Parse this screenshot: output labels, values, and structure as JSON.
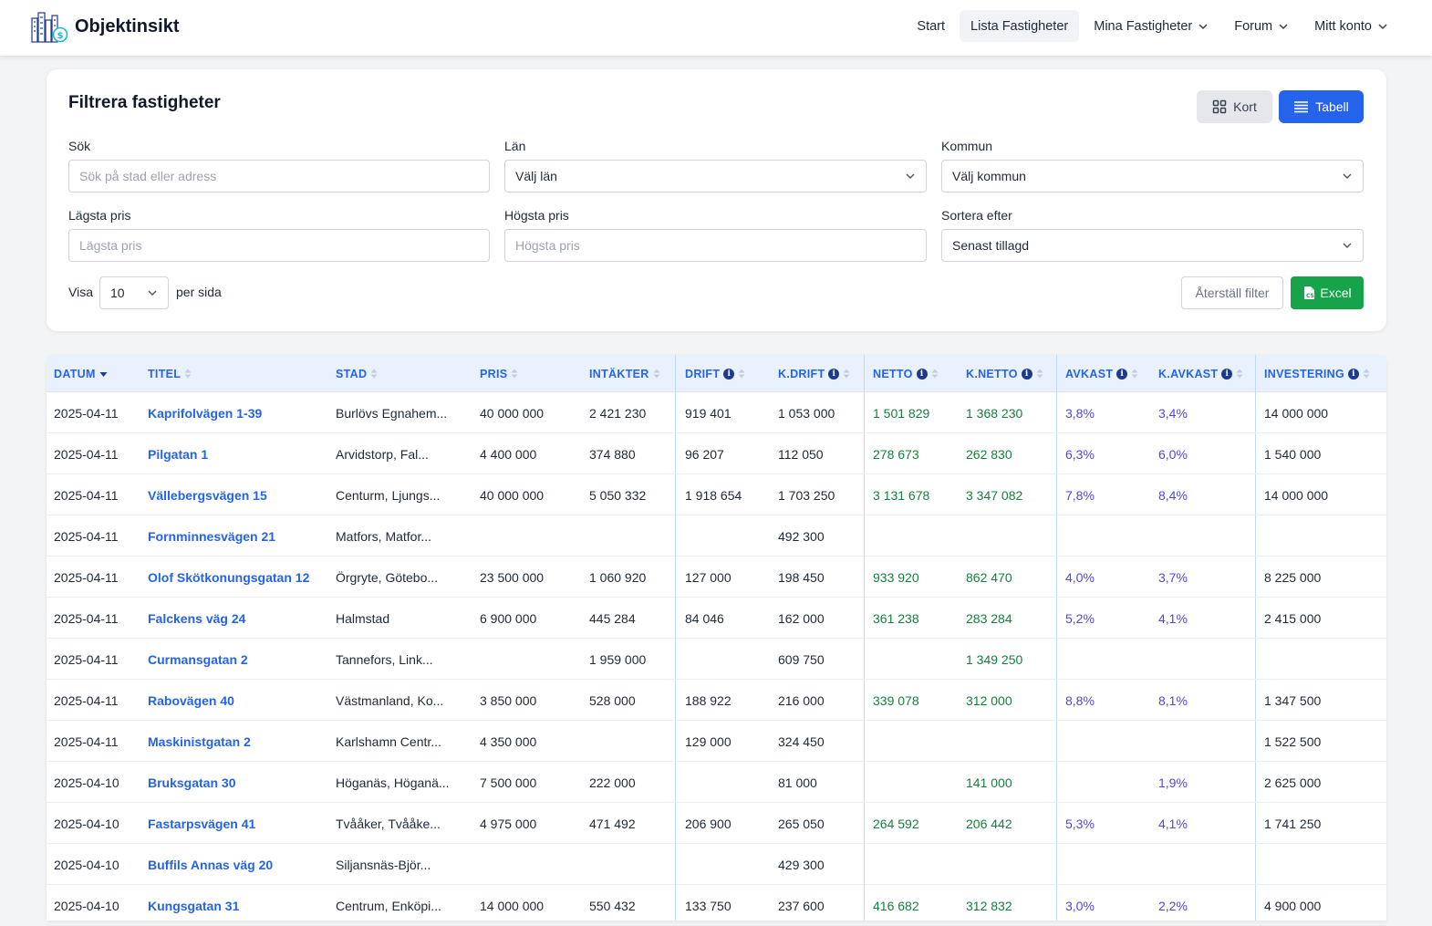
{
  "brand": {
    "name": "Objektinsikt"
  },
  "nav": {
    "start": "Start",
    "lista": "Lista Fastigheter",
    "mina": "Mina Fastigheter",
    "forum": "Forum",
    "konto": "Mitt konto"
  },
  "filter": {
    "title": "Filtrera fastigheter",
    "view_kort": "Kort",
    "view_tabell": "Tabell",
    "search_label": "Sök",
    "search_placeholder": "Sök på stad eller adress",
    "lan_label": "Län",
    "lan_value": "Välj län",
    "kommun_label": "Kommun",
    "kommun_value": "Välj kommun",
    "min_label": "Lägsta pris",
    "min_placeholder": "Lägsta pris",
    "max_label": "Högsta pris",
    "max_placeholder": "Högsta pris",
    "sort_label": "Sortera efter",
    "sort_value": "Senast tillagd",
    "visa_label": "Visa",
    "per_page_value": "10",
    "per_sida_label": "per sida",
    "reset_label": "Återställ filter",
    "excel_label": "Excel"
  },
  "table": {
    "headers": {
      "datum": "DATUM",
      "titel": "TITEL",
      "stad": "STAD",
      "pris": "PRIS",
      "intakter": "INTÄKTER",
      "drift": "DRIFT",
      "kdrift": "K.DRIFT",
      "netto": "NETTO",
      "knetto": "K.NETTO",
      "avkast": "AVKAST",
      "kavkast": "K.AVKAST",
      "investering": "INVESTERING"
    },
    "rows": [
      {
        "datum": "2025-04-11",
        "titel": "Kaprifolvägen 1-39",
        "stad": "Burlövs Egnahem...",
        "pris": "40 000 000",
        "intakter": "2 421 230",
        "drift": "919 401",
        "kdrift": "1 053 000",
        "netto": "1 501 829",
        "knetto": "1 368 230",
        "avkast": "3,8%",
        "kavkast": "3,4%",
        "investering": "14 000 000"
      },
      {
        "datum": "2025-04-11",
        "titel": "Pilgatan 1",
        "stad": "Arvidstorp, Fal...",
        "pris": "4 400 000",
        "intakter": "374 880",
        "drift": "96 207",
        "kdrift": "112 050",
        "netto": "278 673",
        "knetto": "262 830",
        "avkast": "6,3%",
        "kavkast": "6,0%",
        "investering": "1 540 000"
      },
      {
        "datum": "2025-04-11",
        "titel": "Vällebergsvägen 15",
        "stad": "Centurm, Ljungs...",
        "pris": "40 000 000",
        "intakter": "5 050 332",
        "drift": "1 918 654",
        "kdrift": "1 703 250",
        "netto": "3 131 678",
        "knetto": "3 347 082",
        "avkast": "7,8%",
        "kavkast": "8,4%",
        "investering": "14 000 000"
      },
      {
        "datum": "2025-04-11",
        "titel": "Fornminnesvägen 21",
        "stad": "Matfors, Matfor...",
        "pris": "",
        "intakter": "",
        "drift": "",
        "kdrift": "492 300",
        "netto": "",
        "knetto": "",
        "avkast": "",
        "kavkast": "",
        "investering": ""
      },
      {
        "datum": "2025-04-11",
        "titel": "Olof Skötkonungsgatan 12",
        "stad": "Örgryte, Götebo...",
        "pris": "23 500 000",
        "intakter": "1 060 920",
        "drift": "127 000",
        "kdrift": "198 450",
        "netto": "933 920",
        "knetto": "862 470",
        "avkast": "4,0%",
        "kavkast": "3,7%",
        "investering": "8 225 000"
      },
      {
        "datum": "2025-04-11",
        "titel": "Falckens väg 24",
        "stad": "Halmstad",
        "pris": "6 900 000",
        "intakter": "445 284",
        "drift": "84 046",
        "kdrift": "162 000",
        "netto": "361 238",
        "knetto": "283 284",
        "avkast": "5,2%",
        "kavkast": "4,1%",
        "investering": "2 415 000"
      },
      {
        "datum": "2025-04-11",
        "titel": "Curmansgatan 2",
        "stad": "Tannefors, Link...",
        "pris": "",
        "intakter": "1 959 000",
        "drift": "",
        "kdrift": "609 750",
        "netto": "",
        "knetto": "1 349 250",
        "avkast": "",
        "kavkast": "",
        "investering": ""
      },
      {
        "datum": "2025-04-11",
        "titel": "Rabovägen 40",
        "stad": "Västmanland, Ko...",
        "pris": "3 850 000",
        "intakter": "528 000",
        "drift": "188 922",
        "kdrift": "216 000",
        "netto": "339 078",
        "knetto": "312 000",
        "avkast": "8,8%",
        "kavkast": "8,1%",
        "investering": "1 347 500"
      },
      {
        "datum": "2025-04-11",
        "titel": "Maskinistgatan 2",
        "stad": "Karlshamn Centr...",
        "pris": "4 350 000",
        "intakter": "",
        "drift": "129 000",
        "kdrift": "324 450",
        "netto": "",
        "knetto": "",
        "avkast": "",
        "kavkast": "",
        "investering": "1 522 500"
      },
      {
        "datum": "2025-04-10",
        "titel": "Bruksgatan 30",
        "stad": "Höganäs, Höganä...",
        "pris": "7 500 000",
        "intakter": "222 000",
        "drift": "",
        "kdrift": "81 000",
        "netto": "",
        "knetto": "141 000",
        "avkast": "",
        "kavkast": "1,9%",
        "investering": "2 625 000"
      },
      {
        "datum": "2025-04-10",
        "titel": "Fastarpsvägen 41",
        "stad": "Tvååker, Tvååke...",
        "pris": "4 975 000",
        "intakter": "471 492",
        "drift": "206 900",
        "kdrift": "265 050",
        "netto": "264 592",
        "knetto": "206 442",
        "avkast": "5,3%",
        "kavkast": "4,1%",
        "investering": "1 741 250"
      },
      {
        "datum": "2025-04-10",
        "titel": "Buffils Annas väg 20",
        "stad": "Siljansnäs-Björ...",
        "pris": "",
        "intakter": "",
        "drift": "",
        "kdrift": "429 300",
        "netto": "",
        "knetto": "",
        "avkast": "",
        "kavkast": "",
        "investering": ""
      },
      {
        "datum": "2025-04-10",
        "titel": "Kungsgatan 31",
        "stad": "Centrum, Enköpi...",
        "pris": "14 000 000",
        "intakter": "550 432",
        "drift": "133 750",
        "kdrift": "237 600",
        "netto": "416 682",
        "knetto": "312 832",
        "avkast": "3,0%",
        "kavkast": "2,2%",
        "investering": "4 900 000"
      }
    ]
  },
  "colors": {
    "primary": "#2563eb",
    "success": "#16a34a",
    "netto_text": "#15803d",
    "avkast_text": "#4f46e5",
    "header_bg": "#e8f1fd"
  }
}
